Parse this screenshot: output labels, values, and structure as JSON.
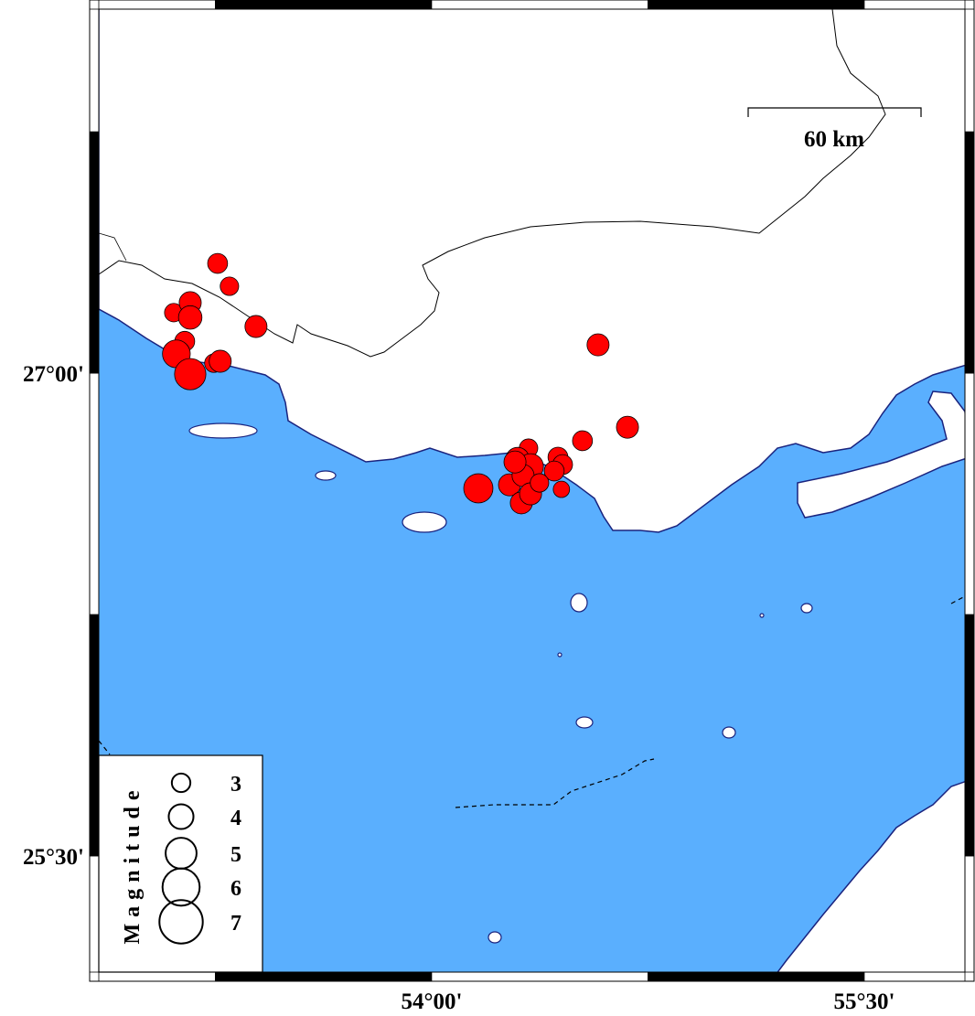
{
  "map": {
    "extent": {
      "lon": [
        52.846,
        55.849
      ],
      "lat": [
        25.139,
        28.131
      ]
    },
    "colors": {
      "sea": "#5aaffe",
      "land": "#ffffff",
      "coast": "#1a237e",
      "event": "#ff0000",
      "border": "#000000"
    },
    "lon_ticks": [
      {
        "value": 54.0,
        "label": "54°00'"
      },
      {
        "value": 55.5,
        "label": "55°30'"
      }
    ],
    "lat_ticks": [
      {
        "value": 27.0,
        "label": "27°00'"
      },
      {
        "value": 25.5,
        "label": "25°30'"
      }
    ],
    "frame_interval_deg": 0.75,
    "scale_bar": {
      "label": "60 km",
      "length_km": 60
    }
  },
  "legend": {
    "title": "Magnitude",
    "entries": [
      {
        "mag": 3,
        "label": "3"
      },
      {
        "mag": 4,
        "label": "4"
      },
      {
        "mag": 5,
        "label": "5"
      },
      {
        "mag": 6,
        "label": "6"
      },
      {
        "mag": 7,
        "label": "7"
      }
    ]
  },
  "events": [
    {
      "lon": 53.258,
      "lat": 27.341,
      "mag": 3.1
    },
    {
      "lon": 53.299,
      "lat": 27.27,
      "mag": 2.9
    },
    {
      "lon": 53.106,
      "lat": 27.188,
      "mag": 2.9
    },
    {
      "lon": 53.163,
      "lat": 27.219,
      "mag": 3.4
    },
    {
      "lon": 53.163,
      "lat": 27.173,
      "mag": 3.6
    },
    {
      "lon": 53.391,
      "lat": 27.145,
      "mag": 3.4
    },
    {
      "lon": 53.144,
      "lat": 27.099,
      "mag": 3.1
    },
    {
      "lon": 53.115,
      "lat": 27.06,
      "mag": 4.2
    },
    {
      "lon": 53.245,
      "lat": 27.031,
      "mag": 2.9
    },
    {
      "lon": 53.267,
      "lat": 27.037,
      "mag": 3.4
    },
    {
      "lon": 53.163,
      "lat": 26.997,
      "mag": 4.7
    },
    {
      "lon": 54.577,
      "lat": 27.088,
      "mag": 3.4
    },
    {
      "lon": 54.679,
      "lat": 26.832,
      "mag": 3.4
    },
    {
      "lon": 54.523,
      "lat": 26.79,
      "mag": 3.1
    },
    {
      "lon": 54.162,
      "lat": 26.642,
      "mag": 4.4
    },
    {
      "lon": 54.27,
      "lat": 26.653,
      "mag": 3.4
    },
    {
      "lon": 54.311,
      "lat": 26.597,
      "mag": 3.4
    },
    {
      "lon": 54.336,
      "lat": 26.767,
      "mag": 2.9
    },
    {
      "lon": 54.298,
      "lat": 26.733,
      "mag": 3.6
    },
    {
      "lon": 54.343,
      "lat": 26.71,
      "mag": 3.9
    },
    {
      "lon": 54.317,
      "lat": 26.682,
      "mag": 3.4
    },
    {
      "lon": 54.343,
      "lat": 26.625,
      "mag": 3.4
    },
    {
      "lon": 54.438,
      "lat": 26.739,
      "mag": 3.1
    },
    {
      "lon": 54.454,
      "lat": 26.716,
      "mag": 3.1
    },
    {
      "lon": 54.425,
      "lat": 26.696,
      "mag": 3.1
    },
    {
      "lon": 54.45,
      "lat": 26.639,
      "mag": 2.6
    },
    {
      "lon": 54.374,
      "lat": 26.659,
      "mag": 2.9
    },
    {
      "lon": 54.289,
      "lat": 26.724,
      "mag": 3.4
    }
  ]
}
